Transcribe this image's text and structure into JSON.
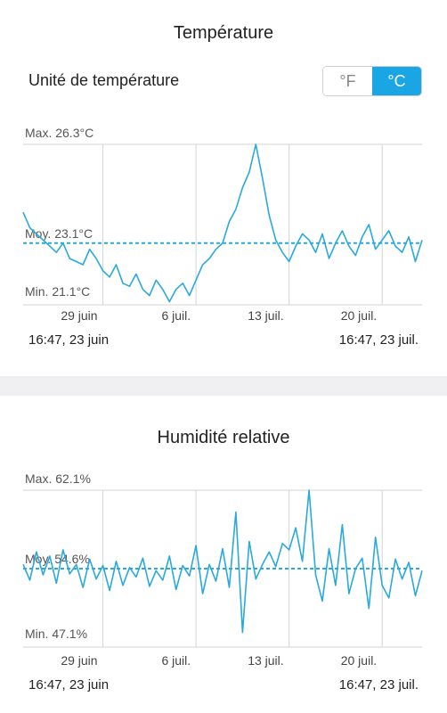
{
  "temperature": {
    "title": "Température",
    "unit_label": "Unité de température",
    "unit_options": [
      "°F",
      "°C"
    ],
    "unit_selected": "°C",
    "range_start": "16:47,  23 juin",
    "range_end": "16:47,  23 juil."
  },
  "humidity": {
    "title": "Humidité relative",
    "range_start": "16:47,  23 juin",
    "range_end": "16:47,  23 juil."
  },
  "colors": {
    "accent": "#1aa6e4",
    "line": "#29a9dd",
    "grid": "#d4d4d4"
  },
  "chart_data": [
    {
      "type": "line",
      "title": "Température",
      "x_ticks": [
        "29 juin",
        "6 juil.",
        "13 juil.",
        "20 juil."
      ],
      "x_range": [
        "16:47, 23 juin",
        "16:47, 23 juil."
      ],
      "max_label": "Max. 26.3°C",
      "avg_label": "Moy. 23.1°C",
      "min_label": "Min. 21.1°C",
      "max": 26.3,
      "avg": 23.1,
      "min": 21.1,
      "series": [
        {
          "x": [
            0,
            0.5,
            1,
            1.5,
            2,
            2.5,
            3,
            3.5,
            4,
            4.5,
            5,
            5.5,
            6,
            6.5,
            7,
            7.5,
            8,
            8.5,
            9,
            9.5,
            10,
            10.5,
            11,
            11.5,
            12,
            12.5,
            13,
            13.5,
            14,
            14.5,
            15,
            15.5,
            16,
            16.5,
            17,
            17.5,
            18,
            18.5,
            19,
            19.5,
            20,
            20.5,
            21,
            21.5,
            22,
            22.5,
            23,
            23.5,
            24,
            24.5,
            25,
            25.5,
            26,
            26.5,
            27,
            27.5,
            28,
            28.5,
            29,
            29.5,
            30
          ],
          "values": [
            24.1,
            23.6,
            23.4,
            23.2,
            23.0,
            22.8,
            23.1,
            22.6,
            22.5,
            22.4,
            22.9,
            22.6,
            22.2,
            22.0,
            22.4,
            21.8,
            21.7,
            22.1,
            21.6,
            21.4,
            21.9,
            21.6,
            21.2,
            21.6,
            21.8,
            21.4,
            21.9,
            22.4,
            22.6,
            22.9,
            23.1,
            23.8,
            24.2,
            24.9,
            25.4,
            26.3,
            25.2,
            24.0,
            23.2,
            22.8,
            22.5,
            23.0,
            23.4,
            23.2,
            22.8,
            23.4,
            22.6,
            23.1,
            23.5,
            23.0,
            22.7,
            23.3,
            23.7,
            22.9,
            23.2,
            23.5,
            23.0,
            22.8,
            23.3,
            22.5,
            23.2
          ]
        }
      ]
    },
    {
      "type": "line",
      "title": "Humidité relative",
      "x_ticks": [
        "29 juin",
        "6 juil.",
        "13 juil.",
        "20 juil."
      ],
      "x_range": [
        "16:47, 23 juin",
        "16:47, 23 juil."
      ],
      "max_label": "Max. 62.1%",
      "avg_label": "Moy. 54.6%",
      "min_label": "Min. 47.1%",
      "max": 62.1,
      "avg": 54.6,
      "min": 47.1,
      "series": [
        {
          "x": [
            0,
            0.5,
            1,
            1.5,
            2,
            2.5,
            3,
            3.5,
            4,
            4.5,
            5,
            5.5,
            6,
            6.5,
            7,
            7.5,
            8,
            8.5,
            9,
            9.5,
            10,
            10.5,
            11,
            11.5,
            12,
            12.5,
            13,
            13.5,
            14,
            14.5,
            15,
            15.5,
            16,
            16.5,
            17,
            17.5,
            18,
            18.5,
            19,
            19.5,
            20,
            20.5,
            21,
            21.5,
            22,
            22.5,
            23,
            23.5,
            24,
            24.5,
            25,
            25.5,
            26,
            26.5,
            27,
            27.5,
            28,
            28.5,
            29,
            29.5,
            30
          ],
          "values": [
            55.0,
            53.5,
            56.2,
            54.0,
            55.8,
            53.2,
            56.4,
            54.1,
            55.0,
            52.8,
            55.5,
            53.6,
            54.9,
            52.5,
            55.3,
            53.0,
            54.7,
            53.8,
            55.6,
            52.9,
            54.4,
            53.5,
            55.8,
            52.6,
            54.9,
            53.9,
            56.8,
            52.2,
            55.0,
            53.4,
            56.5,
            52.8,
            60.0,
            48.5,
            57.2,
            53.6,
            55.0,
            56.2,
            54.8,
            57.0,
            56.4,
            58.5,
            55.3,
            62.1,
            54.0,
            51.5,
            56.5,
            53.0,
            58.8,
            52.2,
            54.6,
            55.6,
            50.8,
            57.6,
            53.0,
            51.8,
            55.5,
            53.6,
            55.2,
            52.0,
            54.4
          ]
        }
      ]
    }
  ]
}
